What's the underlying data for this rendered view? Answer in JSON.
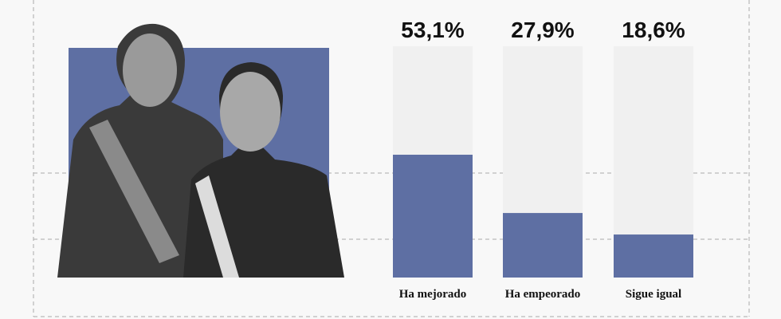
{
  "chart_data": {
    "type": "bar",
    "categories": [
      "Ha mejorado",
      "Ha empeorado",
      "Sigue igual"
    ],
    "values": [
      53.1,
      27.9,
      18.6
    ],
    "value_labels": [
      "53,1%",
      "27,9%",
      "18,6%"
    ],
    "color": "#5e6fa3",
    "track_color": "#f0f0f0",
    "ylim": [
      0,
      100
    ]
  }
}
